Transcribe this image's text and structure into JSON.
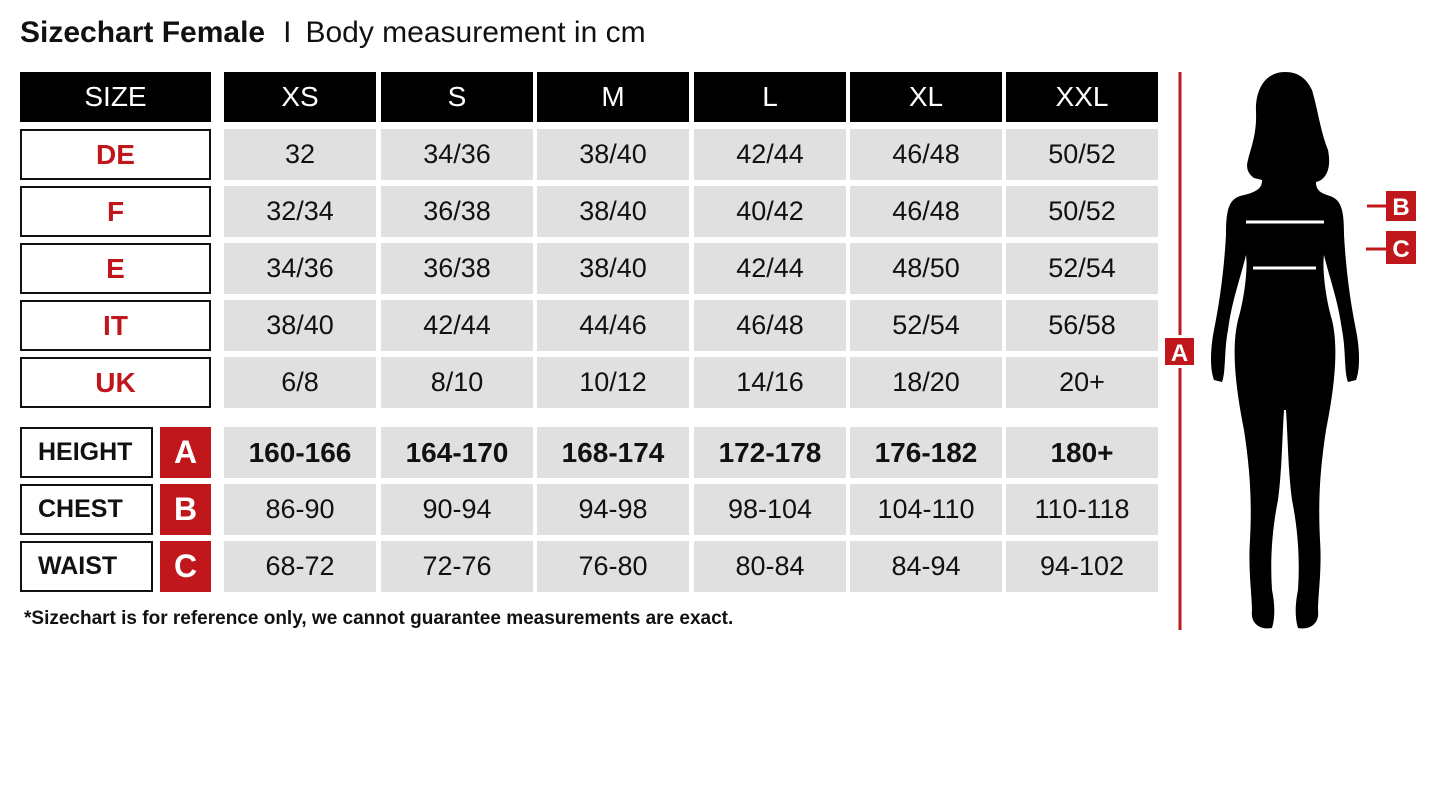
{
  "title": {
    "bold": "Sizechart Female",
    "separator": "I",
    "subtitle": "Body measurement in cm"
  },
  "size_header": "SIZE",
  "sizes": [
    "XS",
    "S",
    "M",
    "L",
    "XL",
    "XXL"
  ],
  "country_rows": [
    {
      "label": "DE",
      "values": [
        "32",
        "34/36",
        "38/40",
        "42/44",
        "46/48",
        "50/52"
      ]
    },
    {
      "label": "F",
      "values": [
        "32/34",
        "36/38",
        "38/40",
        "40/42",
        "46/48",
        "50/52"
      ]
    },
    {
      "label": "E",
      "values": [
        "34/36",
        "36/38",
        "38/40",
        "42/44",
        "48/50",
        "52/54"
      ]
    },
    {
      "label": "IT",
      "values": [
        "38/40",
        "42/44",
        "44/46",
        "46/48",
        "52/54",
        "56/58"
      ]
    },
    {
      "label": "UK",
      "values": [
        "6/8",
        "8/10",
        "10/12",
        "14/16",
        "18/20",
        "20+"
      ]
    }
  ],
  "measurement_rows": [
    {
      "label": "HEIGHT",
      "letter": "A",
      "bold": true,
      "values": [
        "160-166",
        "164-170",
        "168-174",
        "172-178",
        "176-182",
        "180+"
      ]
    },
    {
      "label": "CHEST",
      "letter": "B",
      "bold": false,
      "values": [
        "86-90",
        "90-94",
        "94-98",
        "98-104",
        "104-110",
        "110-118"
      ]
    },
    {
      "label": "WAIST",
      "letter": "C",
      "bold": false,
      "values": [
        "68-72",
        "72-76",
        "76-80",
        "80-84",
        "84-94",
        "94-102"
      ]
    }
  ],
  "note": "*Sizechart is for reference only, we cannot guarantee measurements are exact.",
  "figure": {
    "markers": [
      "A",
      "B",
      "C"
    ]
  },
  "colors": {
    "accent": "#c0171c",
    "header_bg": "#000000",
    "cell_bg": "#e0e0e0"
  }
}
